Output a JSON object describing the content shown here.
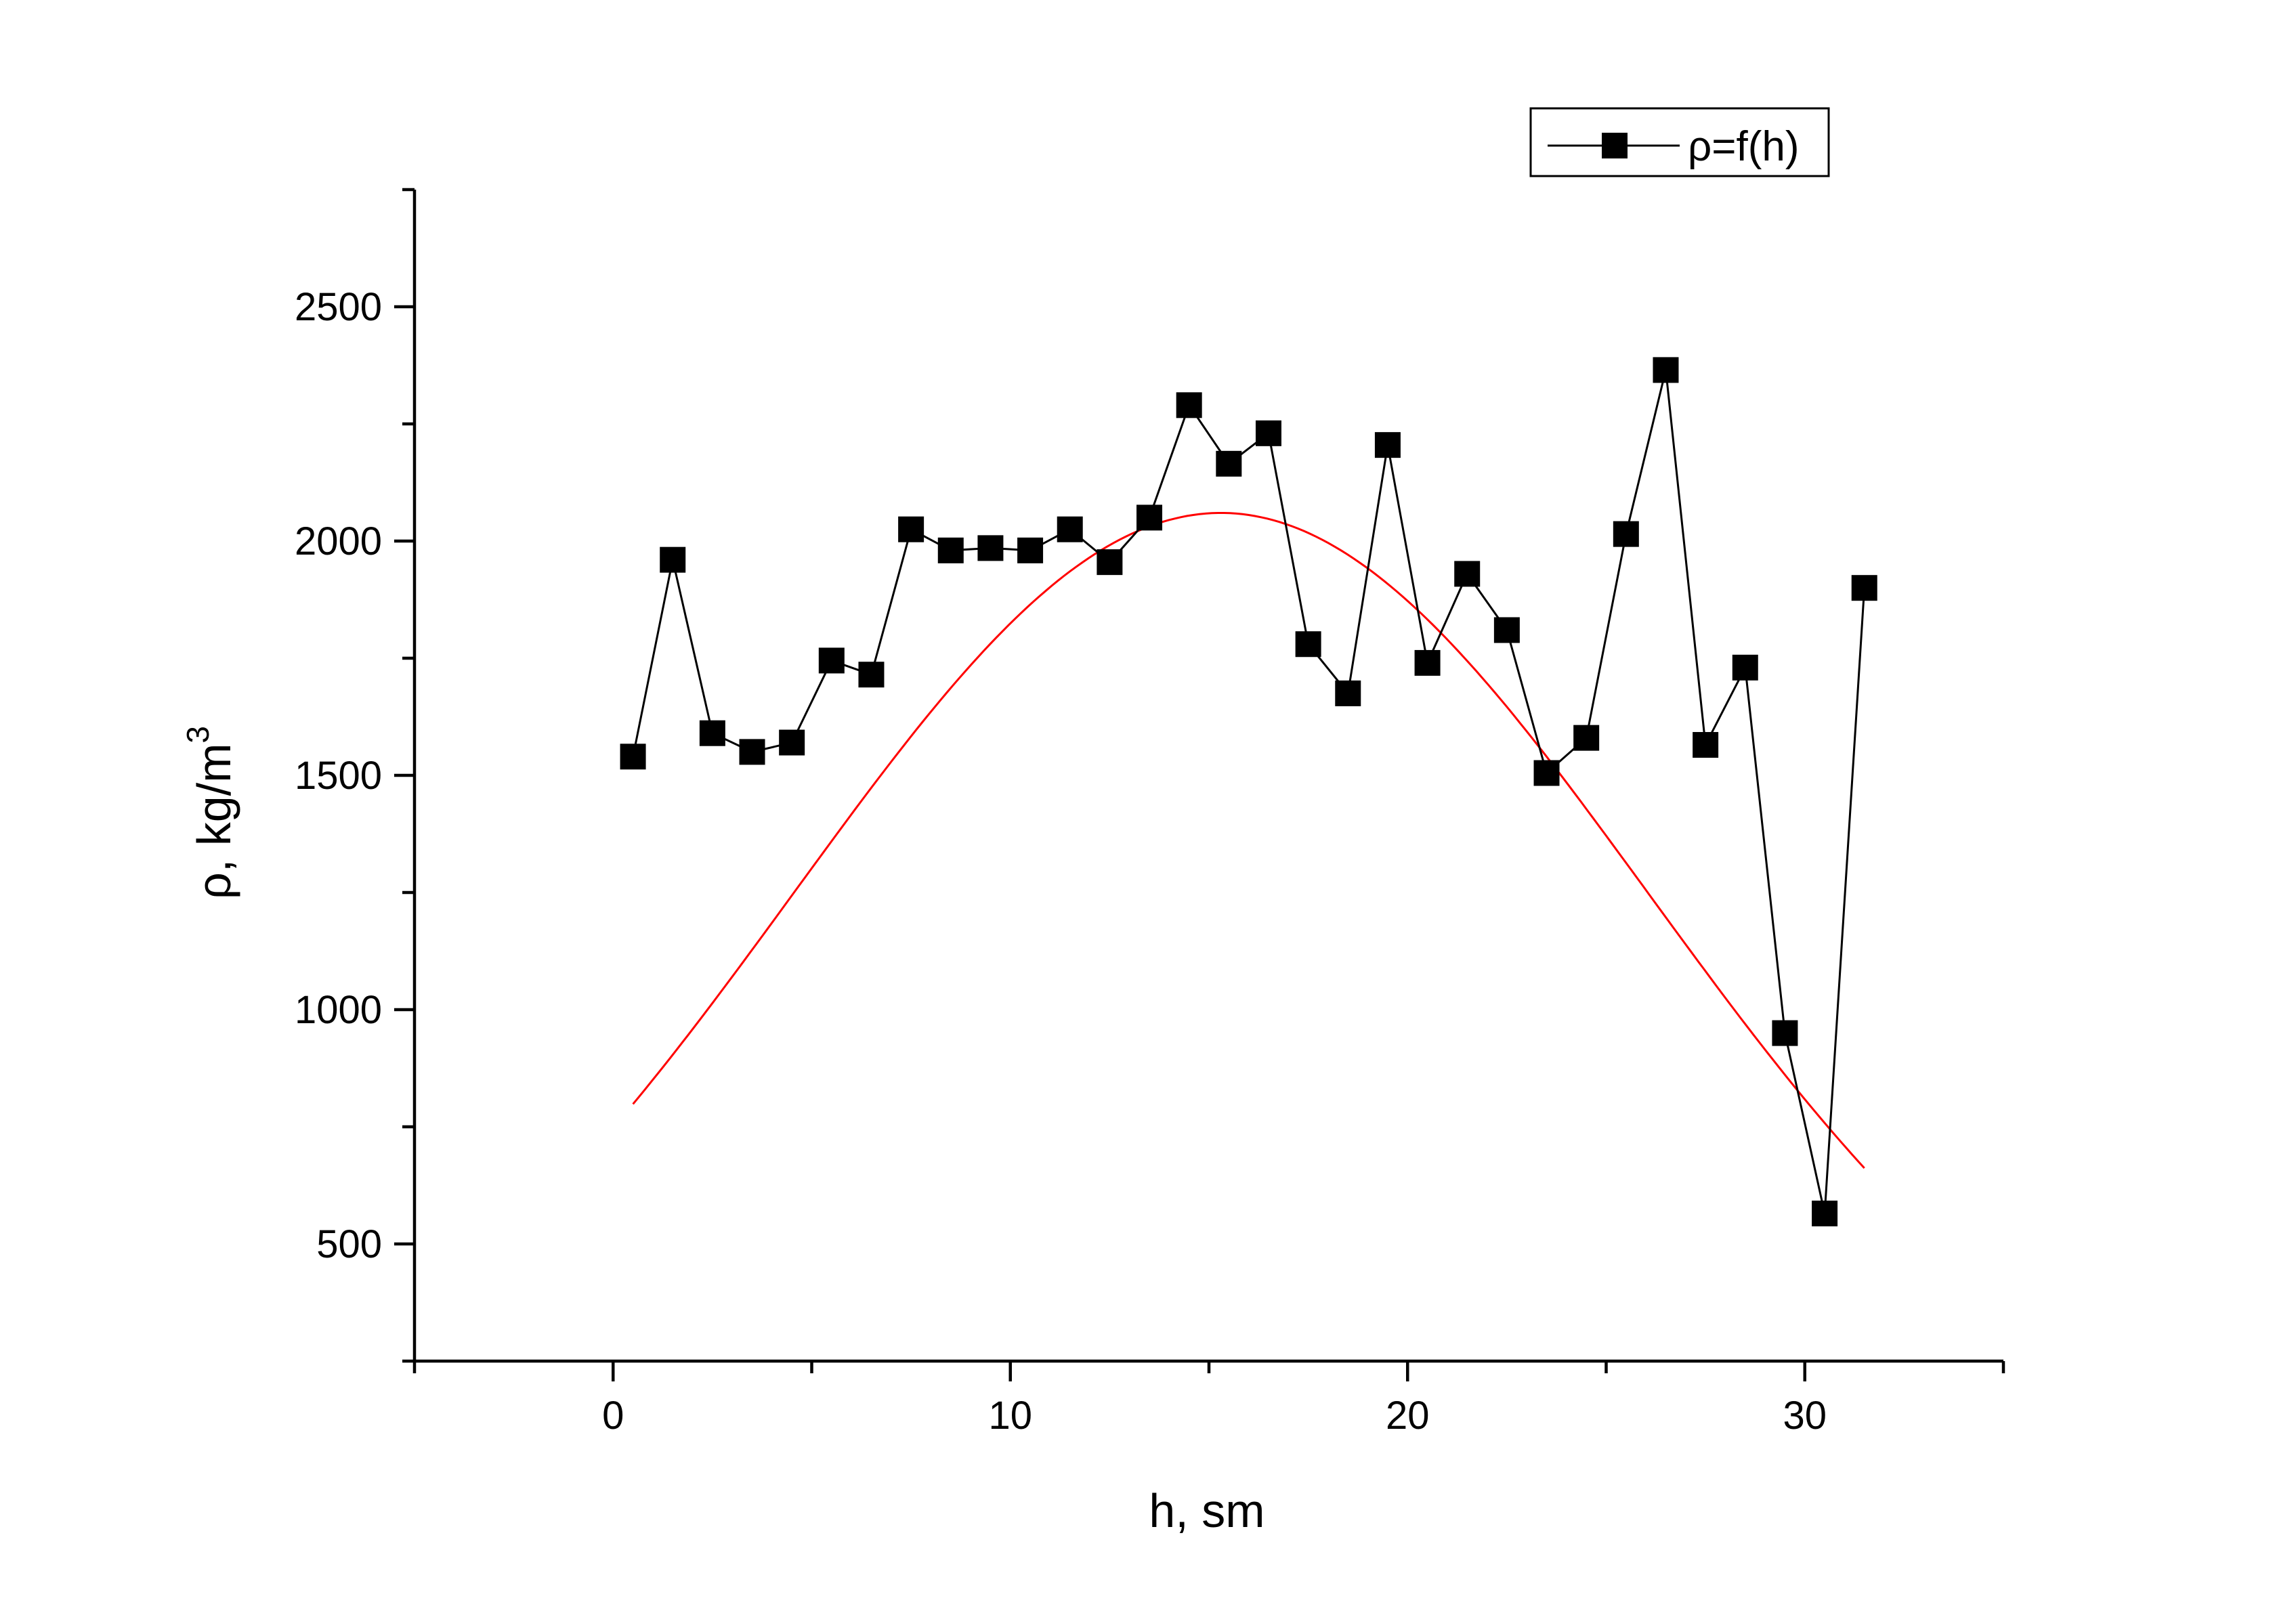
{
  "chart_data": {
    "type": "line",
    "xlabel": "h, sm",
    "ylabel": "ρ, kg/m",
    "ylabel_superscript": "3",
    "xlim": [
      -5,
      35
    ],
    "ylim": [
      250,
      2750
    ],
    "x_ticks": [
      0,
      10,
      20,
      30
    ],
    "y_ticks": [
      500,
      1000,
      1500,
      2000,
      2500
    ],
    "grid": false,
    "legend_position": "top-right",
    "series": [
      {
        "name": "ρ=f(h)",
        "color": "#000000",
        "marker": "square",
        "x": [
          0.5,
          1.5,
          2.5,
          3.5,
          4.5,
          5.5,
          6.5,
          7.5,
          8.5,
          9.5,
          10.5,
          11.5,
          12.5,
          13.5,
          14.5,
          15.5,
          16.5,
          17.5,
          18.5,
          19.5,
          20.5,
          21.5,
          22.5,
          23.5,
          24.5,
          25.5,
          26.5,
          27.5,
          28.5,
          29.5,
          30.5,
          31.5
        ],
        "values": [
          1540,
          1960,
          1590,
          1550,
          1570,
          1745,
          1715,
          2025,
          1980,
          1985,
          1980,
          2025,
          1955,
          2050,
          2290,
          2165,
          2230,
          1780,
          1675,
          2205,
          1740,
          1930,
          1810,
          1505,
          1580,
          2015,
          2365,
          1565,
          1730,
          950,
          565,
          1900
        ]
      },
      {
        "color": "#ff0000",
        "marker": "none",
        "fit": "gaussian",
        "x_range": [
          0.5,
          31.5
        ],
        "params": {
          "y0": 0,
          "A": 2060,
          "xc": 15.3,
          "w": 21.5
        }
      }
    ]
  }
}
